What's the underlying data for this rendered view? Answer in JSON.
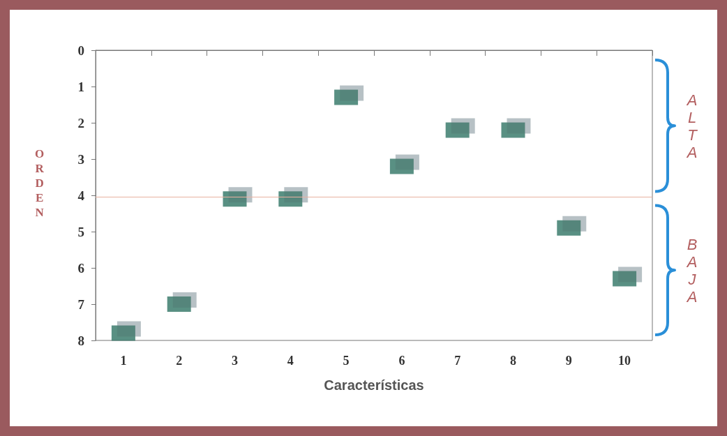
{
  "chart_data": {
    "type": "scatter",
    "xlabel": "Características",
    "ylabel": "ORDEN",
    "categories": [
      "1",
      "2",
      "3",
      "4",
      "5",
      "6",
      "7",
      "8",
      "9",
      "10"
    ],
    "series": [
      {
        "color": "#2e7464",
        "values": [
          7.8,
          7,
          4.1,
          4.1,
          1.3,
          3.2,
          2.2,
          2.2,
          4.9,
          6.3
        ]
      }
    ],
    "ylim": [
      8,
      0
    ],
    "yticks": [
      0,
      1,
      2,
      3,
      4,
      5,
      6,
      7,
      8
    ],
    "grid": false,
    "marker": "square",
    "ref_lines": [
      {
        "axis": "y",
        "value": 4.05,
        "color": "#e8b0a0"
      }
    ],
    "annotations": [
      "ALTA",
      "BAJA"
    ]
  }
}
